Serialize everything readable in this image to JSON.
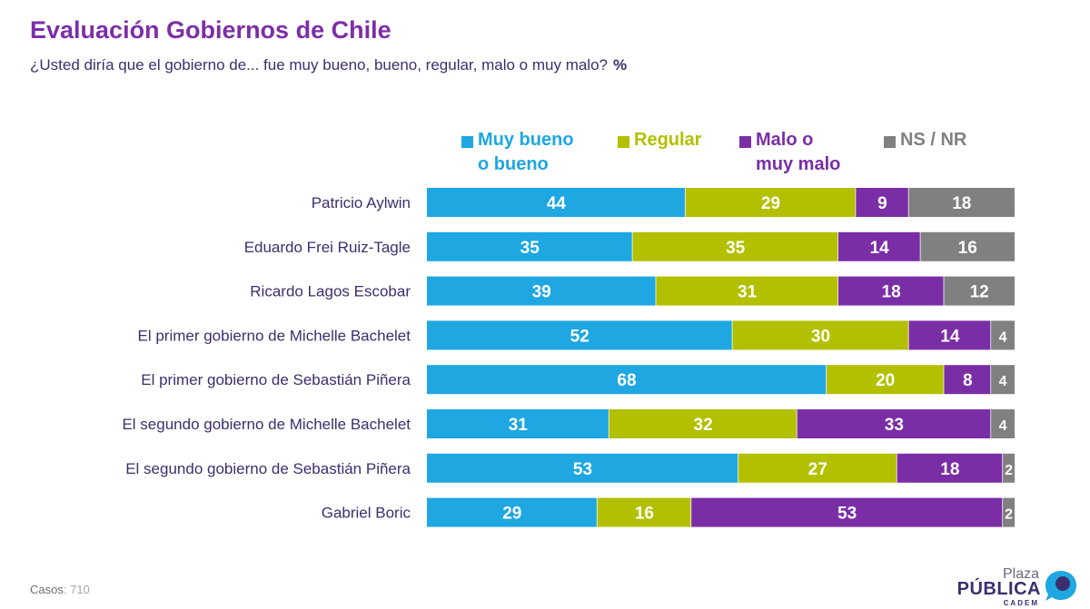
{
  "title": "Evaluación Gobiernos de Chile",
  "subtitle": "¿Usted diría que el gobierno de... fue muy bueno, bueno, regular, malo o muy malo?",
  "subtitle_unit": "%",
  "footer": {
    "casos_label": "Casos",
    "casos_value": ": 710"
  },
  "logo": {
    "line1": "Plaza",
    "line2": "PÚBLICA",
    "line3": "CADEM"
  },
  "legend": [
    {
      "line1": "Muy bueno",
      "line2": "o bueno",
      "color": "#1ea7e1"
    },
    {
      "line1": "Regular",
      "line2": "",
      "color": "#b3c000"
    },
    {
      "line1": "Malo o",
      "line2": "muy malo",
      "color": "#7a2ea6"
    },
    {
      "line1": "NS / NR",
      "line2": "",
      "color": "#808080"
    }
  ],
  "chart_data": {
    "type": "bar",
    "orientation": "horizontal",
    "stacked": true,
    "percent": true,
    "categories": [
      "Patricio Aylwin",
      "Eduardo Frei Ruiz-Tagle",
      "Ricardo Lagos Escobar",
      "El primer gobierno de Michelle Bachelet",
      "El primer gobierno de Sebastián Piñera",
      "El segundo gobierno de Michelle Bachelet",
      "El segundo gobierno de Sebastián Piñera",
      "Gabriel Boric"
    ],
    "series": [
      {
        "name": "Muy bueno o bueno",
        "color": "#1ea7e1",
        "values": [
          44,
          35,
          39,
          52,
          68,
          31,
          53,
          29
        ]
      },
      {
        "name": "Regular",
        "color": "#b3c000",
        "values": [
          29,
          35,
          31,
          30,
          20,
          32,
          27,
          16
        ]
      },
      {
        "name": "Malo o muy malo",
        "color": "#7a2ea6",
        "values": [
          9,
          14,
          18,
          14,
          8,
          33,
          18,
          53
        ]
      },
      {
        "name": "NS / NR",
        "color": "#808080",
        "values": [
          18,
          16,
          12,
          4,
          4,
          4,
          2,
          2
        ]
      }
    ],
    "legend_position": "top",
    "grid": false,
    "data_labels": true
  }
}
